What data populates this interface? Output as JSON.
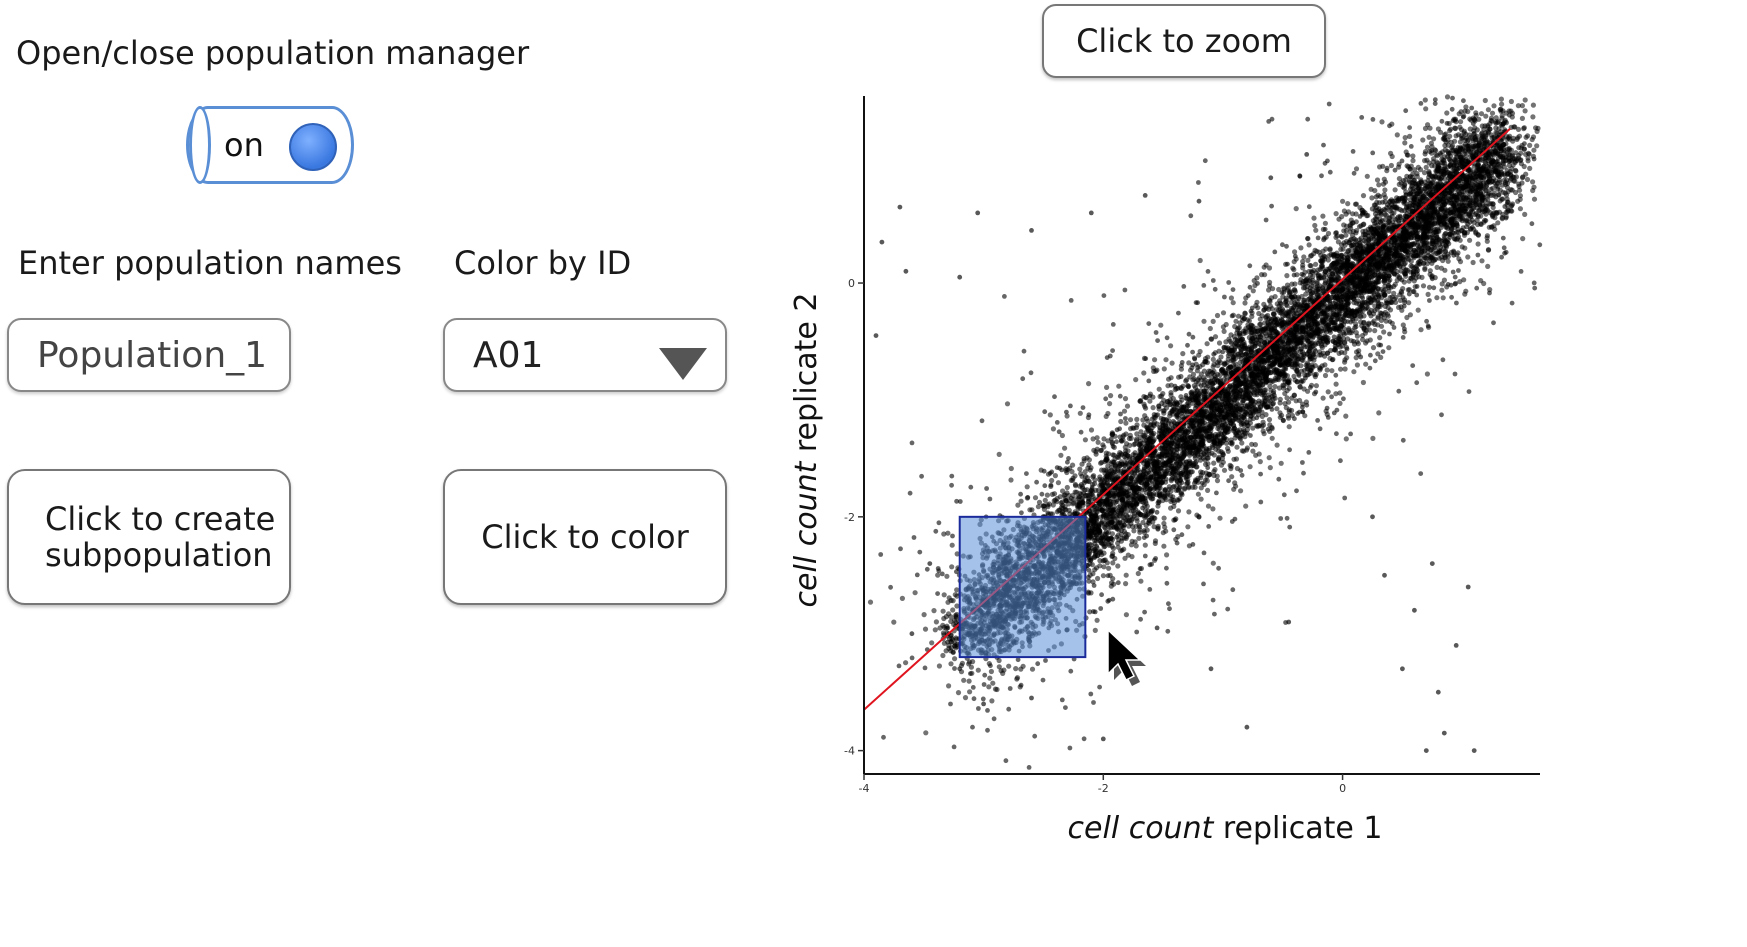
{
  "zoom_button": {
    "label": "Click to zoom"
  },
  "population_manager": {
    "label": "Open/close population manager",
    "toggle_state": "on"
  },
  "population_names": {
    "label": "Enter population names",
    "value": "Population_1"
  },
  "color_by": {
    "label": "Color by ID",
    "selected": "A01"
  },
  "create_button": {
    "line1": "Click to create",
    "line2": "subpopulation"
  },
  "color_button": {
    "label": "Click to color"
  },
  "chart_data": {
    "type": "scatter",
    "title": "",
    "xlabel_italic": "cell count",
    "xlabel_rest": " replicate 1",
    "ylabel_italic": "cell count",
    "ylabel_rest": " replicate 2",
    "xlim": [
      -4.0,
      1.65
    ],
    "ylim": [
      -4.2,
      1.6
    ],
    "xticks": [
      -4,
      -2,
      0
    ],
    "yticks": [
      0,
      -2,
      -4
    ],
    "grid": false,
    "fit_line": {
      "color": "#e0141e",
      "x0": -4.0,
      "y0": -3.65,
      "x1": 1.4,
      "y1": 1.32
    },
    "selection_box": {
      "x0": -3.2,
      "x1": -2.15,
      "y0": -3.2,
      "y1": -2.0,
      "color": "#5b8fd8"
    },
    "point_color": "#000000",
    "outliers": [
      [
        -3.45,
        -2.4
      ],
      [
        -3.6,
        -3.0
      ],
      [
        -3.2,
        -3.3
      ],
      [
        -3.0,
        -3.6
      ],
      [
        -2.6,
        -3.55
      ],
      [
        -2.0,
        -3.9
      ],
      [
        -1.1,
        -3.3
      ],
      [
        -0.8,
        -3.8
      ],
      [
        0.5,
        -3.3
      ],
      [
        0.8,
        -3.5
      ],
      [
        1.1,
        -4.0
      ],
      [
        0.7,
        -4.0
      ],
      [
        0.85,
        -3.85
      ],
      [
        -3.9,
        -0.45
      ],
      [
        -3.65,
        0.1
      ],
      [
        -3.85,
        0.35
      ],
      [
        -3.7,
        0.65
      ],
      [
        -3.05,
        0.6
      ],
      [
        -2.6,
        0.45
      ],
      [
        -2.1,
        0.6
      ],
      [
        -1.65,
        0.75
      ],
      [
        -1.2,
        0.7
      ],
      [
        -0.6,
        0.9
      ],
      [
        -0.3,
        1.1
      ],
      [
        -3.2,
        0.05
      ],
      [
        0.35,
        -2.5
      ],
      [
        0.6,
        -2.8
      ],
      [
        0.75,
        -2.4
      ],
      [
        0.95,
        -3.1
      ],
      [
        1.05,
        -2.6
      ],
      [
        0.25,
        -2.0
      ],
      [
        -0.45,
        -2.9
      ],
      [
        -1.55,
        -2.95
      ],
      [
        -3.3,
        -2.95
      ],
      [
        -1.85,
        -1.35
      ]
    ]
  }
}
